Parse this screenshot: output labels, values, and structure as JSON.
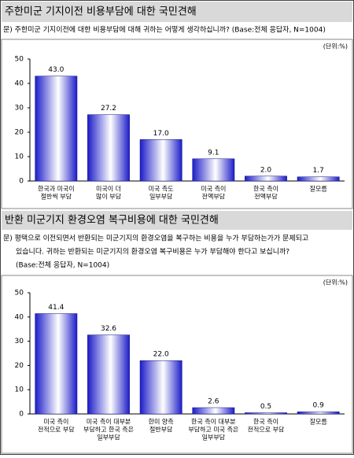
{
  "chart_data": [
    {
      "type": "bar",
      "title": "주한미군 기지이전 비용부담에 대한 국민견해",
      "subtitle": [
        "문) 주한미군 기지이전에 대한 비용부담에 대해 귀하는 어떻게 생각하십니까? (Base:전체 응답자, N=1004)"
      ],
      "unit_label": "(단위:%)",
      "categories": [
        [
          "한국과 미국이",
          "절반씩 부담"
        ],
        [
          "미국이 더",
          "많이 부담"
        ],
        [
          "미국 측도",
          "일부부담"
        ],
        [
          "미국 측이",
          "전액부담"
        ],
        [
          "한국 측이",
          "전액부담"
        ],
        [
          "잘모름"
        ]
      ],
      "values": [
        43.0,
        27.2,
        17.0,
        9.1,
        2.0,
        1.7
      ],
      "value_labels": [
        "43.0",
        "27.2",
        "17.0",
        "9.1",
        "2.0",
        "1.7"
      ],
      "color": "#1c1cc8",
      "ylim": [
        0,
        50
      ],
      "yticks": [
        0,
        10,
        20,
        30,
        40,
        50
      ],
      "grid": false
    },
    {
      "type": "bar",
      "title": "반환 미군기지 환경오염 복구비용에 대한 국민견해",
      "subtitle": [
        "문) 평택으로 이전되면서 반환되는 미군기지의 환경오염을 복구하는 비용을 누가 부담하는가가 문제되고",
        "있습니다. 귀하는 반환되는 미군기지의 환경오염 복구비용은 누가 부담해야 한다고 보십니까?",
        "(Base:전체 응답자,   N=1004)"
      ],
      "unit_label": "(단위:%)",
      "categories": [
        [
          "미국 측이",
          "전적으로 부담"
        ],
        [
          "미국 측이 대부분",
          "부담하고 한국 측은",
          "일부부담"
        ],
        [
          "한미 양측",
          "절반부담"
        ],
        [
          "한국 측이 대부분",
          "부담하고 미국 측은",
          "일부부담"
        ],
        [
          "한국 측이",
          "전적으로 부담"
        ],
        [
          "잘모름"
        ]
      ],
      "values": [
        41.4,
        32.6,
        22.0,
        2.6,
        0.5,
        0.9
      ],
      "value_labels": [
        "41.4",
        "32.6",
        "22.0",
        "2.6",
        "0.5",
        "0.9"
      ],
      "color": "#1c1cc8",
      "ylim": [
        0,
        50
      ],
      "yticks": [
        0,
        10,
        20,
        30,
        40,
        50
      ],
      "grid": false
    }
  ]
}
